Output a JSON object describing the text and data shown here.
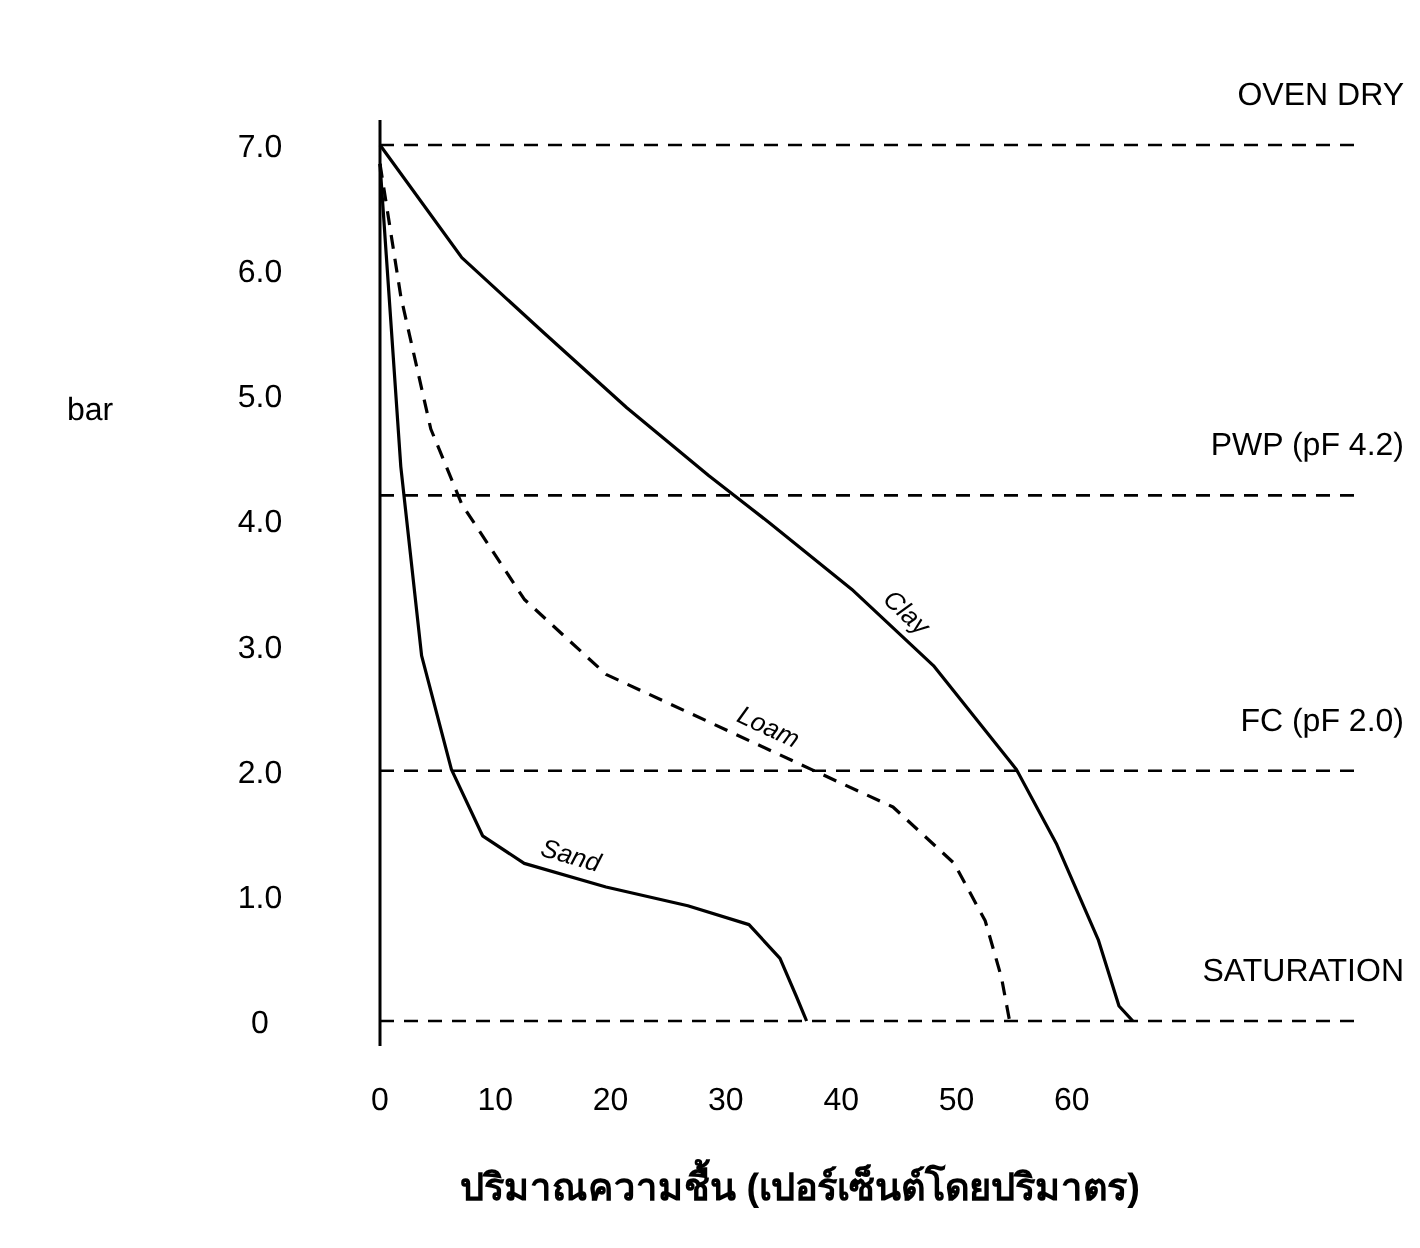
{
  "chart_data": {
    "type": "line",
    "ylabel": "bar",
    "xlabel": "ปริมาณความชื้น (เปอร์เซ็นต์โดยปริมาตร)",
    "xlim": [
      0,
      85
    ],
    "xticks": [
      0,
      10,
      20,
      30,
      40,
      50,
      60
    ],
    "ylim": [
      -0.2,
      7.2
    ],
    "yticks": [
      0,
      {
        "value": 1,
        "label": "1.0"
      },
      {
        "value": 2,
        "label": "2.0"
      },
      {
        "value": 3,
        "label": "3.0"
      },
      {
        "value": 4,
        "label": "4.0"
      },
      {
        "value": 5,
        "label": "5.0"
      },
      {
        "value": 6,
        "label": "6.0"
      },
      {
        "value": 7,
        "label": "7.0"
      }
    ],
    "grid": false,
    "marker": "none",
    "series": [
      {
        "name": "Clay",
        "color": "#000000",
        "line_style": "solid",
        "x": [
          0,
          7.1,
          14.2,
          21.4,
          28.5,
          33.8,
          40.9,
          48.0,
          55.2,
          58.7,
          62.3,
          64.1,
          65.3
        ],
        "values": [
          7.0,
          6.1,
          5.5,
          4.9,
          4.36,
          3.98,
          3.45,
          2.84,
          2.01,
          1.41,
          0.65,
          0.12,
          0
        ]
      },
      {
        "name": "Loam",
        "color": "#000000",
        "line_style": "dashed",
        "x": [
          0,
          1.8,
          4.4,
          7.1,
          12.5,
          19.6,
          28.5,
          37.4,
          44.5,
          49.8,
          52.5,
          53.9,
          54.6
        ],
        "values": [
          6.85,
          5.79,
          4.73,
          4.13,
          3.37,
          2.77,
          2.39,
          2.01,
          1.71,
          1.26,
          0.8,
          0.35,
          0
        ]
      },
      {
        "name": "Sand",
        "color": "#000000",
        "line_style": "solid",
        "x": [
          0,
          1.8,
          3.6,
          6.2,
          8.9,
          12.5,
          19.6,
          26.7,
          32.0,
          34.7,
          36.1,
          37.0
        ],
        "values": [
          6.85,
          4.43,
          2.92,
          2.01,
          1.48,
          1.26,
          1.07,
          0.92,
          0.77,
          0.5,
          0.2,
          0
        ]
      }
    ],
    "ref_lines": [
      {
        "axis": "y",
        "value": 7,
        "label": "OVEN DRY",
        "line_style": "dashed",
        "color": "#000000"
      },
      {
        "axis": "y",
        "value": 4.2,
        "label": "PWP (pF 4.2)",
        "line_style": "dashed",
        "color": "#000000"
      },
      {
        "axis": "y",
        "value": 2,
        "label": "FC (pF 2.0)",
        "line_style": "dashed",
        "color": "#000000"
      },
      {
        "axis": "y",
        "value": 0,
        "label": "SATURATION",
        "line_style": "dashed",
        "color": "#000000"
      }
    ]
  }
}
